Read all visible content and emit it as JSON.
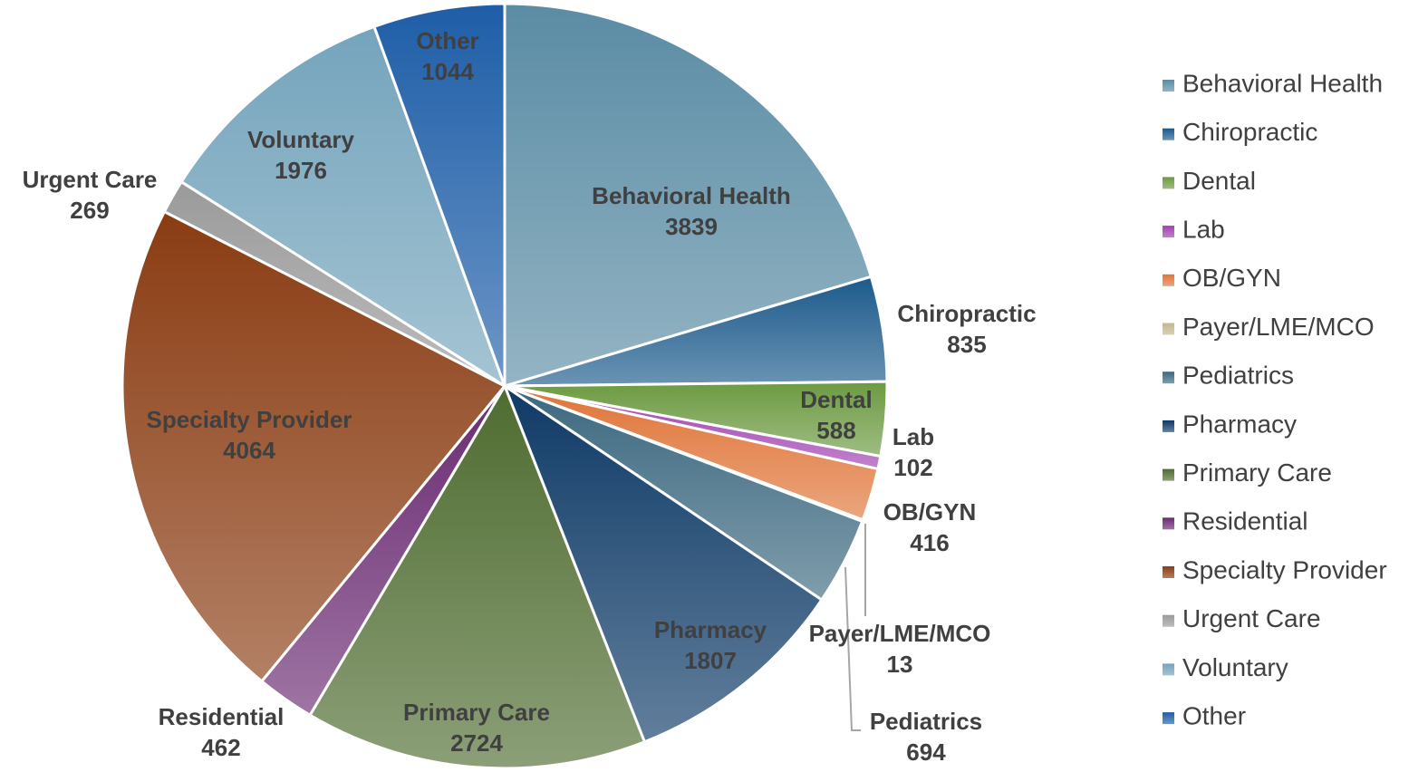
{
  "chart_data": {
    "type": "pie",
    "categories": [
      "Behavioral Health",
      "Chiropractic",
      "Dental",
      "Lab",
      "OB/GYN",
      "Payer/LME/MCO",
      "Pediatrics",
      "Pharmacy",
      "Primary Care",
      "Residential",
      "Specialty Provider",
      "Urgent Care",
      "Voluntary",
      "Other"
    ],
    "values": [
      3839,
      835,
      588,
      102,
      416,
      13,
      694,
      1807,
      2724,
      462,
      4064,
      269,
      1976,
      1044
    ],
    "colors": [
      "#5a8ca4",
      "#1c5a8c",
      "#6c9a40",
      "#a040b0",
      "#e07438",
      "#c2b890",
      "#3c6880",
      "#0e3a66",
      "#4e6c30",
      "#6a2a72",
      "#8a3c12",
      "#9a9a9a",
      "#74a4bc",
      "#1e5ea8"
    ],
    "legend": "right"
  }
}
